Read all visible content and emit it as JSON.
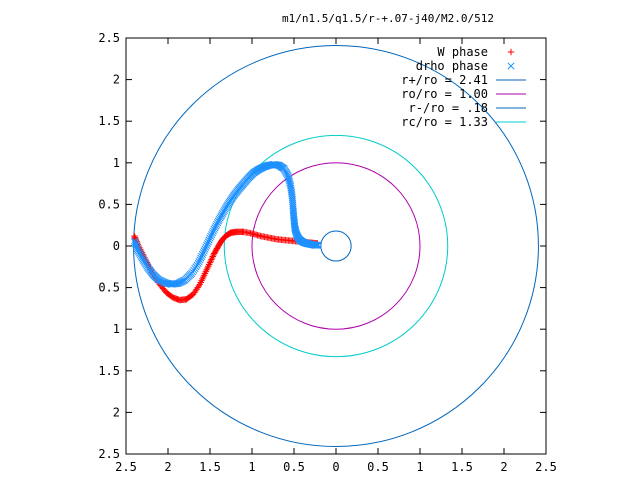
{
  "chart_data": {
    "type": "scatter",
    "title": "m1/n1.5/q1.5/r-+.07-j40/M2.0/512",
    "xlabel": "",
    "ylabel": "",
    "xlim": [
      -2.5,
      2.5
    ],
    "ylim": [
      -2.5,
      2.5
    ],
    "x_ticks": [
      {
        "value": -2.5,
        "label": "2.5"
      },
      {
        "value": -2.0,
        "label": "2"
      },
      {
        "value": -1.5,
        "label": "1.5"
      },
      {
        "value": -1.0,
        "label": "1"
      },
      {
        "value": -0.5,
        "label": "0.5"
      },
      {
        "value": 0.0,
        "label": "0"
      },
      {
        "value": 0.5,
        "label": "0.5"
      },
      {
        "value": 1.0,
        "label": "1"
      },
      {
        "value": 1.5,
        "label": "1.5"
      },
      {
        "value": 2.0,
        "label": "2"
      },
      {
        "value": 2.5,
        "label": "2.5"
      }
    ],
    "y_ticks": [
      {
        "value": 2.5,
        "label": "2.5"
      },
      {
        "value": 2.0,
        "label": "2"
      },
      {
        "value": 1.5,
        "label": "1.5"
      },
      {
        "value": 1.0,
        "label": "1"
      },
      {
        "value": 0.5,
        "label": "0.5"
      },
      {
        "value": 0.0,
        "label": "0"
      },
      {
        "value": -0.5,
        "label": "0.5"
      },
      {
        "value": -1.0,
        "label": "1"
      },
      {
        "value": -1.5,
        "label": "1.5"
      },
      {
        "value": -2.0,
        "label": "2"
      },
      {
        "value": -2.5,
        "label": "2.5"
      }
    ],
    "legend_position": "top-right",
    "grid": false,
    "series": [
      {
        "name": "W phase",
        "kind": "points",
        "marker": "plus",
        "color": "#ff0000",
        "x": [
          -2.4,
          -2.36,
          -2.3,
          -2.24,
          -2.18,
          -2.1,
          -2.02,
          -1.94,
          -1.86,
          -1.78,
          -1.7,
          -1.62,
          -1.56,
          -1.5,
          -1.45,
          -1.4,
          -1.35,
          -1.3,
          -1.25,
          -1.18,
          -1.1,
          -1.0,
          -0.9,
          -0.8,
          -0.7,
          -0.6,
          -0.5,
          -0.4,
          -0.3,
          -0.22
        ],
        "y": [
          0.12,
          0.02,
          -0.1,
          -0.22,
          -0.34,
          -0.46,
          -0.56,
          -0.62,
          -0.65,
          -0.64,
          -0.58,
          -0.46,
          -0.33,
          -0.2,
          -0.09,
          0.0,
          0.08,
          0.13,
          0.16,
          0.17,
          0.17,
          0.15,
          0.12,
          0.1,
          0.08,
          0.07,
          0.06,
          0.05,
          0.04,
          0.03
        ]
      },
      {
        "name": "drho phase",
        "kind": "points",
        "marker": "cross",
        "color": "#1e90ff",
        "x": [
          -2.4,
          -2.36,
          -2.3,
          -2.24,
          -2.18,
          -2.12,
          -2.04,
          -1.96,
          -1.88,
          -1.8,
          -1.72,
          -1.64,
          -1.58,
          -1.52,
          -1.46,
          -1.4,
          -1.34,
          -1.28,
          -1.22,
          -1.16,
          -1.1,
          -1.04,
          -0.98,
          -0.92,
          -0.86,
          -0.8,
          -0.74,
          -0.68,
          -0.62,
          -0.57,
          -0.54,
          -0.52,
          -0.51,
          -0.5,
          -0.49,
          -0.47,
          -0.44,
          -0.4,
          -0.35,
          -0.3,
          -0.25,
          -0.21
        ],
        "y": [
          0.06,
          -0.05,
          -0.16,
          -0.26,
          -0.34,
          -0.4,
          -0.44,
          -0.46,
          -0.45,
          -0.41,
          -0.33,
          -0.21,
          -0.08,
          0.05,
          0.18,
          0.3,
          0.41,
          0.51,
          0.6,
          0.68,
          0.75,
          0.82,
          0.88,
          0.92,
          0.95,
          0.97,
          0.98,
          0.97,
          0.93,
          0.84,
          0.72,
          0.58,
          0.44,
          0.32,
          0.22,
          0.14,
          0.08,
          0.05,
          0.03,
          0.02,
          0.01,
          0.01
        ]
      },
      {
        "name": "r+/ro = 2.41",
        "kind": "circle",
        "radius": 2.41,
        "color": "#0066bb"
      },
      {
        "name": "ro/ro = 1.00",
        "kind": "circle",
        "radius": 1.0,
        "color": "#aa00aa"
      },
      {
        "name": "r-/ro = .18",
        "kind": "circle",
        "radius": 0.18,
        "color": "#0066bb"
      },
      {
        "name": "rc/ro = 1.33",
        "kind": "circle",
        "radius": 1.33,
        "color": "#00cccc"
      }
    ]
  }
}
